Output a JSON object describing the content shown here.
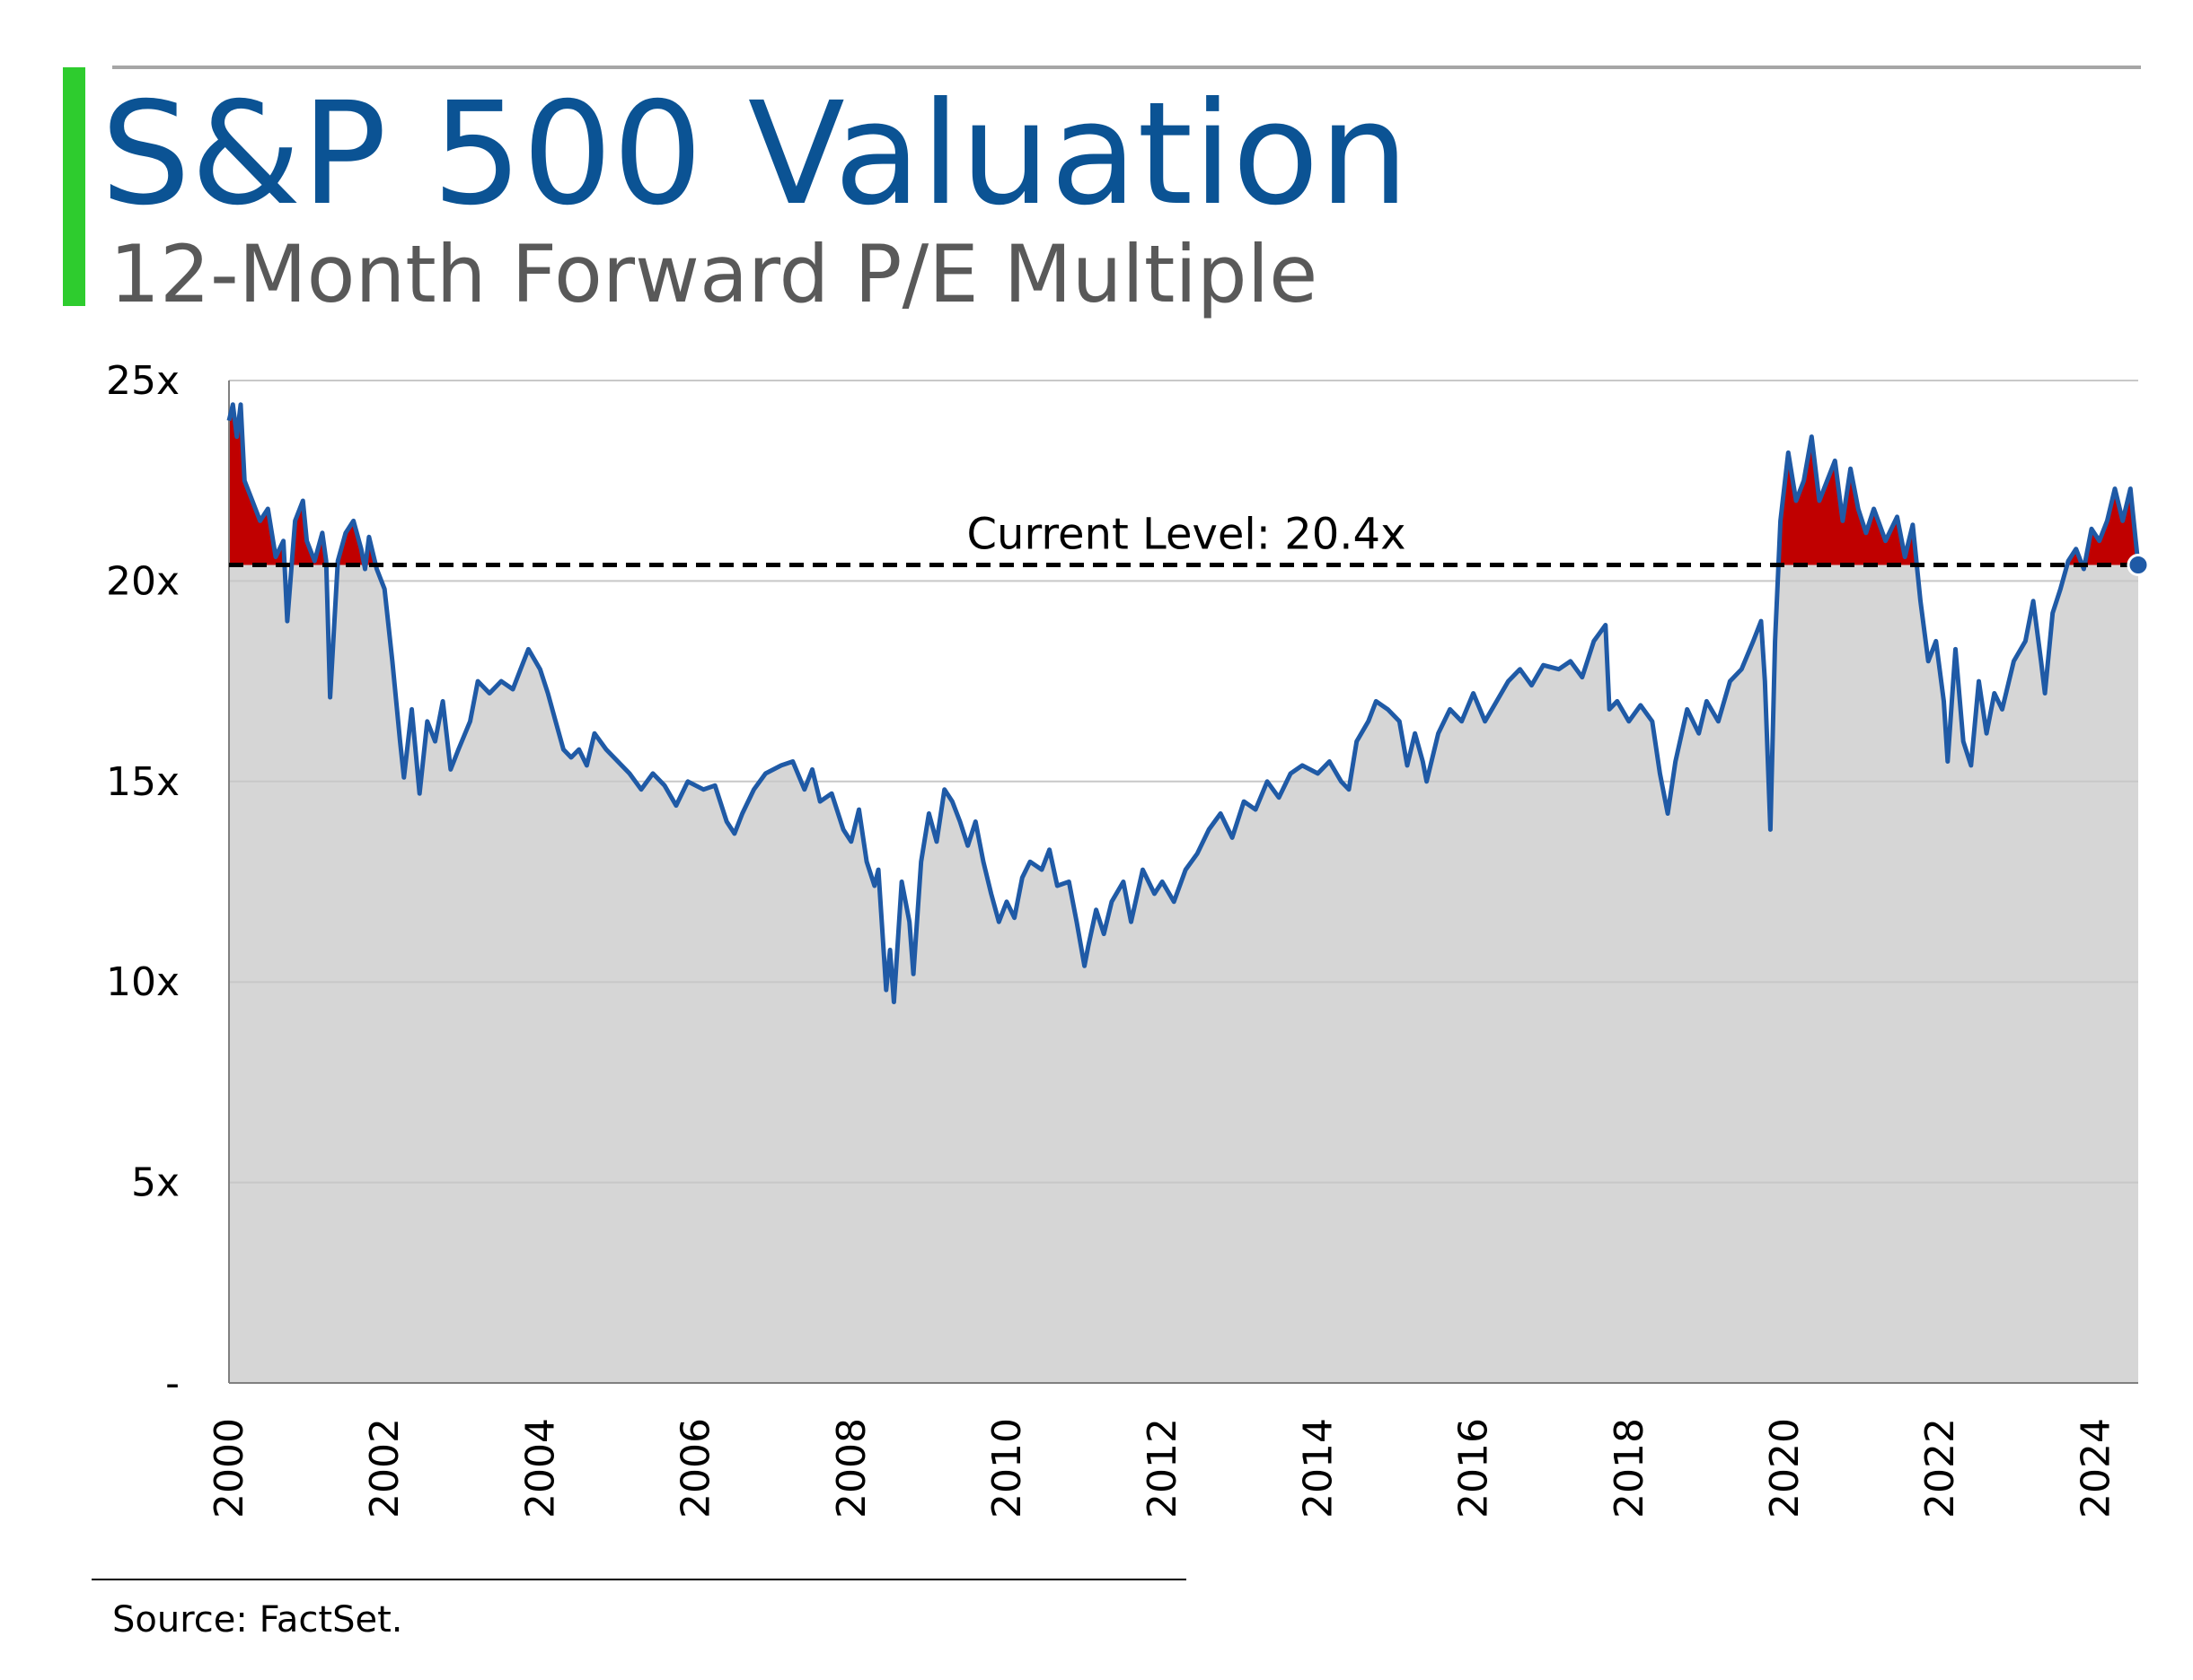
{
  "chart_data": {
    "type": "line",
    "title": "S&P 500 Valuation",
    "subtitle": "12-Month Forward P/E Multiple",
    "source": "Source: FactSet.",
    "annotation": "Current Level: 20.4x",
    "reference_line": 20.4,
    "line_color": "#1f5aa6",
    "area_color": "#d6d6d6",
    "above_color": "#c00000",
    "reference_color": "#000000",
    "grid": true,
    "xlim": [
      2000,
      2024.55
    ],
    "xticks": [
      2000,
      2002,
      2004,
      2006,
      2008,
      2010,
      2012,
      2014,
      2016,
      2018,
      2020,
      2022,
      2024
    ],
    "ylim": [
      0,
      25
    ],
    "yticks": [
      {
        "value": 0,
        "label": "-"
      },
      {
        "value": 5,
        "label": "5x"
      },
      {
        "value": 10,
        "label": "10x"
      },
      {
        "value": 15,
        "label": "15x"
      },
      {
        "value": 20,
        "label": "20x"
      },
      {
        "value": 25,
        "label": "25x"
      }
    ],
    "x": [
      2000.0,
      2000.05,
      2000.1,
      2000.15,
      2000.2,
      2000.3,
      2000.4,
      2000.5,
      2000.6,
      2000.7,
      2000.75,
      2000.85,
      2000.95,
      2001.0,
      2001.1,
      2001.2,
      2001.25,
      2001.3,
      2001.4,
      2001.5,
      2001.6,
      2001.7,
      2001.75,
      2001.8,
      2001.9,
      2002.0,
      2002.1,
      2002.2,
      2002.25,
      2002.35,
      2002.45,
      2002.55,
      2002.65,
      2002.75,
      2002.85,
      2002.95,
      2003.1,
      2003.2,
      2003.35,
      2003.5,
      2003.65,
      2003.75,
      2003.85,
      2004.0,
      2004.1,
      2004.2,
      2004.3,
      2004.4,
      2004.5,
      2004.6,
      2004.7,
      2004.85,
      2005.0,
      2005.15,
      2005.3,
      2005.45,
      2005.6,
      2005.75,
      2005.9,
      2006.1,
      2006.25,
      2006.4,
      2006.5,
      2006.6,
      2006.75,
      2006.9,
      2007.1,
      2007.25,
      2007.4,
      2007.5,
      2007.6,
      2007.75,
      2007.9,
      2008.0,
      2008.1,
      2008.2,
      2008.3,
      2008.35,
      2008.45,
      2008.5,
      2008.55,
      2008.65,
      2008.75,
      2008.8,
      2008.9,
      2009.0,
      2009.1,
      2009.2,
      2009.3,
      2009.4,
      2009.5,
      2009.6,
      2009.7,
      2009.8,
      2009.9,
      2010.0,
      2010.1,
      2010.2,
      2010.3,
      2010.45,
      2010.55,
      2010.65,
      2010.8,
      2010.9,
      2011.0,
      2011.05,
      2011.15,
      2011.25,
      2011.35,
      2011.5,
      2011.6,
      2011.75,
      2011.9,
      2012.0,
      2012.15,
      2012.3,
      2012.45,
      2012.6,
      2012.75,
      2012.9,
      2013.05,
      2013.2,
      2013.35,
      2013.5,
      2013.65,
      2013.8,
      2014.0,
      2014.15,
      2014.3,
      2014.4,
      2014.5,
      2014.65,
      2014.75,
      2014.9,
      2015.05,
      2015.15,
      2015.25,
      2015.35,
      2015.4,
      2015.55,
      2015.7,
      2015.85,
      2016.0,
      2016.15,
      2016.3,
      2016.45,
      2016.6,
      2016.75,
      2016.9,
      2017.1,
      2017.25,
      2017.4,
      2017.55,
      2017.7,
      2017.75,
      2017.85,
      2018.0,
      2018.15,
      2018.3,
      2018.4,
      2018.5,
      2018.6,
      2018.75,
      2018.9,
      2019.0,
      2019.15,
      2019.3,
      2019.45,
      2019.6,
      2019.7,
      2019.75,
      2019.82,
      2019.88,
      2019.95,
      2020.05,
      2020.15,
      2020.25,
      2020.35,
      2020.45,
      2020.55,
      2020.65,
      2020.75,
      2020.85,
      2020.95,
      2021.05,
      2021.15,
      2021.3,
      2021.45,
      2021.55,
      2021.65,
      2021.75,
      2021.85,
      2021.95,
      2022.05,
      2022.1,
      2022.2,
      2022.3,
      2022.4,
      2022.5,
      2022.6,
      2022.7,
      2022.8,
      2022.95,
      2023.1,
      2023.2,
      2023.3,
      2023.35,
      2023.45,
      2023.55,
      2023.65,
      2023.75,
      2023.85,
      2023.95,
      2024.05,
      2024.15,
      2024.25,
      2024.35,
      2024.45,
      2024.55
    ],
    "values": [
      24.0,
      24.4,
      23.6,
      24.4,
      22.5,
      22.0,
      21.5,
      21.8,
      20.6,
      21.0,
      19.0,
      21.5,
      22.0,
      21.0,
      20.5,
      21.2,
      20.5,
      17.1,
      20.5,
      21.2,
      21.5,
      20.8,
      20.3,
      21.1,
      20.3,
      19.8,
      18.0,
      16.0,
      15.1,
      16.8,
      14.7,
      16.5,
      16.0,
      17.0,
      15.3,
      15.8,
      16.5,
      17.5,
      17.2,
      17.5,
      17.3,
      17.8,
      18.3,
      17.8,
      17.2,
      16.5,
      15.8,
      15.6,
      15.8,
      15.4,
      16.2,
      15.8,
      15.5,
      15.2,
      14.8,
      15.2,
      14.9,
      14.4,
      15.0,
      14.8,
      14.9,
      14.0,
      13.7,
      14.2,
      14.8,
      15.2,
      15.4,
      15.5,
      14.8,
      15.3,
      14.5,
      14.7,
      13.8,
      13.5,
      14.3,
      13.0,
      12.4,
      12.8,
      9.8,
      10.8,
      9.5,
      12.5,
      11.5,
      10.2,
      13.0,
      14.2,
      13.5,
      14.8,
      14.5,
      14.0,
      13.4,
      14.0,
      13.0,
      12.2,
      11.5,
      12.0,
      11.6,
      12.6,
      13.0,
      12.8,
      13.3,
      12.4,
      12.5,
      11.5,
      10.4,
      10.9,
      11.8,
      11.2,
      12.0,
      12.5,
      11.5,
      12.8,
      12.2,
      12.5,
      12.0,
      12.8,
      13.2,
      13.8,
      14.2,
      13.6,
      14.5,
      14.3,
      15.0,
      14.6,
      15.2,
      15.4,
      15.2,
      15.5,
      15.0,
      14.8,
      16.0,
      16.5,
      17.0,
      16.8,
      16.5,
      15.4,
      16.2,
      15.5,
      15.0,
      16.2,
      16.8,
      16.5,
      17.2,
      16.5,
      17.0,
      17.5,
      17.8,
      17.4,
      17.9,
      17.8,
      18.0,
      17.6,
      18.5,
      18.9,
      16.8,
      17.0,
      16.5,
      16.9,
      16.5,
      15.2,
      14.2,
      15.5,
      16.8,
      16.2,
      17.0,
      16.5,
      17.5,
      17.8,
      18.5,
      19.0,
      17.5,
      13.8,
      18.5,
      21.5,
      23.2,
      22.0,
      22.5,
      23.6,
      22.0,
      22.5,
      23.0,
      21.5,
      22.8,
      21.8,
      21.2,
      21.8,
      21.0,
      21.6,
      20.6,
      21.4,
      19.5,
      18.0,
      18.5,
      17.0,
      15.5,
      18.3,
      16.0,
      15.4,
      17.5,
      16.2,
      17.2,
      16.8,
      18.0,
      18.5,
      19.5,
      18.0,
      17.2,
      19.2,
      19.8,
      20.5,
      20.8,
      20.3,
      21.3,
      21.0,
      21.5,
      22.3,
      21.5,
      22.3,
      20.4
    ]
  }
}
